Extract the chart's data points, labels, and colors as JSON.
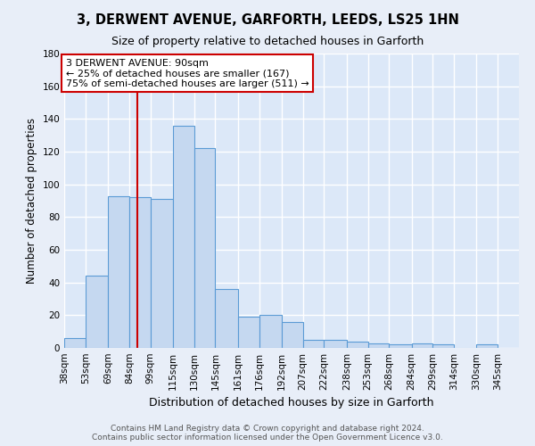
{
  "title": "3, DERWENT AVENUE, GARFORTH, LEEDS, LS25 1HN",
  "subtitle": "Size of property relative to detached houses in Garforth",
  "xlabel": "Distribution of detached houses by size in Garforth",
  "ylabel": "Number of detached properties",
  "bar_labels": [
    "38sqm",
    "53sqm",
    "69sqm",
    "84sqm",
    "99sqm",
    "115sqm",
    "130sqm",
    "145sqm",
    "161sqm",
    "176sqm",
    "192sqm",
    "207sqm",
    "222sqm",
    "238sqm",
    "253sqm",
    "268sqm",
    "284sqm",
    "299sqm",
    "314sqm",
    "330sqm",
    "345sqm"
  ],
  "bins": [
    38,
    53,
    69,
    84,
    99,
    115,
    130,
    145,
    161,
    176,
    192,
    207,
    222,
    238,
    253,
    268,
    284,
    299,
    314,
    330,
    345
  ],
  "heights": [
    6,
    44,
    93,
    92,
    91,
    136,
    122,
    36,
    19,
    20,
    16,
    5,
    5,
    4,
    3,
    2,
    3,
    2,
    0,
    2
  ],
  "bar_color": "#c5d8f0",
  "bar_edge_color": "#5b9bd5",
  "vline_x": 90,
  "vline_color": "#cc0000",
  "annotation_text": "3 DERWENT AVENUE: 90sqm\n← 25% of detached houses are smaller (167)\n75% of semi-detached houses are larger (511) →",
  "annotation_box_color": "#ffffff",
  "annotation_box_edge": "#cc0000",
  "ylim": [
    0,
    180
  ],
  "yticks": [
    0,
    20,
    40,
    60,
    80,
    100,
    120,
    140,
    160,
    180
  ],
  "axes_background": "#dce8f8",
  "grid_color": "#ffffff",
  "fig_background": "#e8eef8",
  "footer_line1": "Contains HM Land Registry data © Crown copyright and database right 2024.",
  "footer_line2": "Contains public sector information licensed under the Open Government Licence v3.0.",
  "title_fontsize": 10.5,
  "subtitle_fontsize": 9,
  "xlabel_fontsize": 9,
  "ylabel_fontsize": 8.5,
  "tick_fontsize": 7.5,
  "annotation_fontsize": 8,
  "footer_fontsize": 6.5
}
